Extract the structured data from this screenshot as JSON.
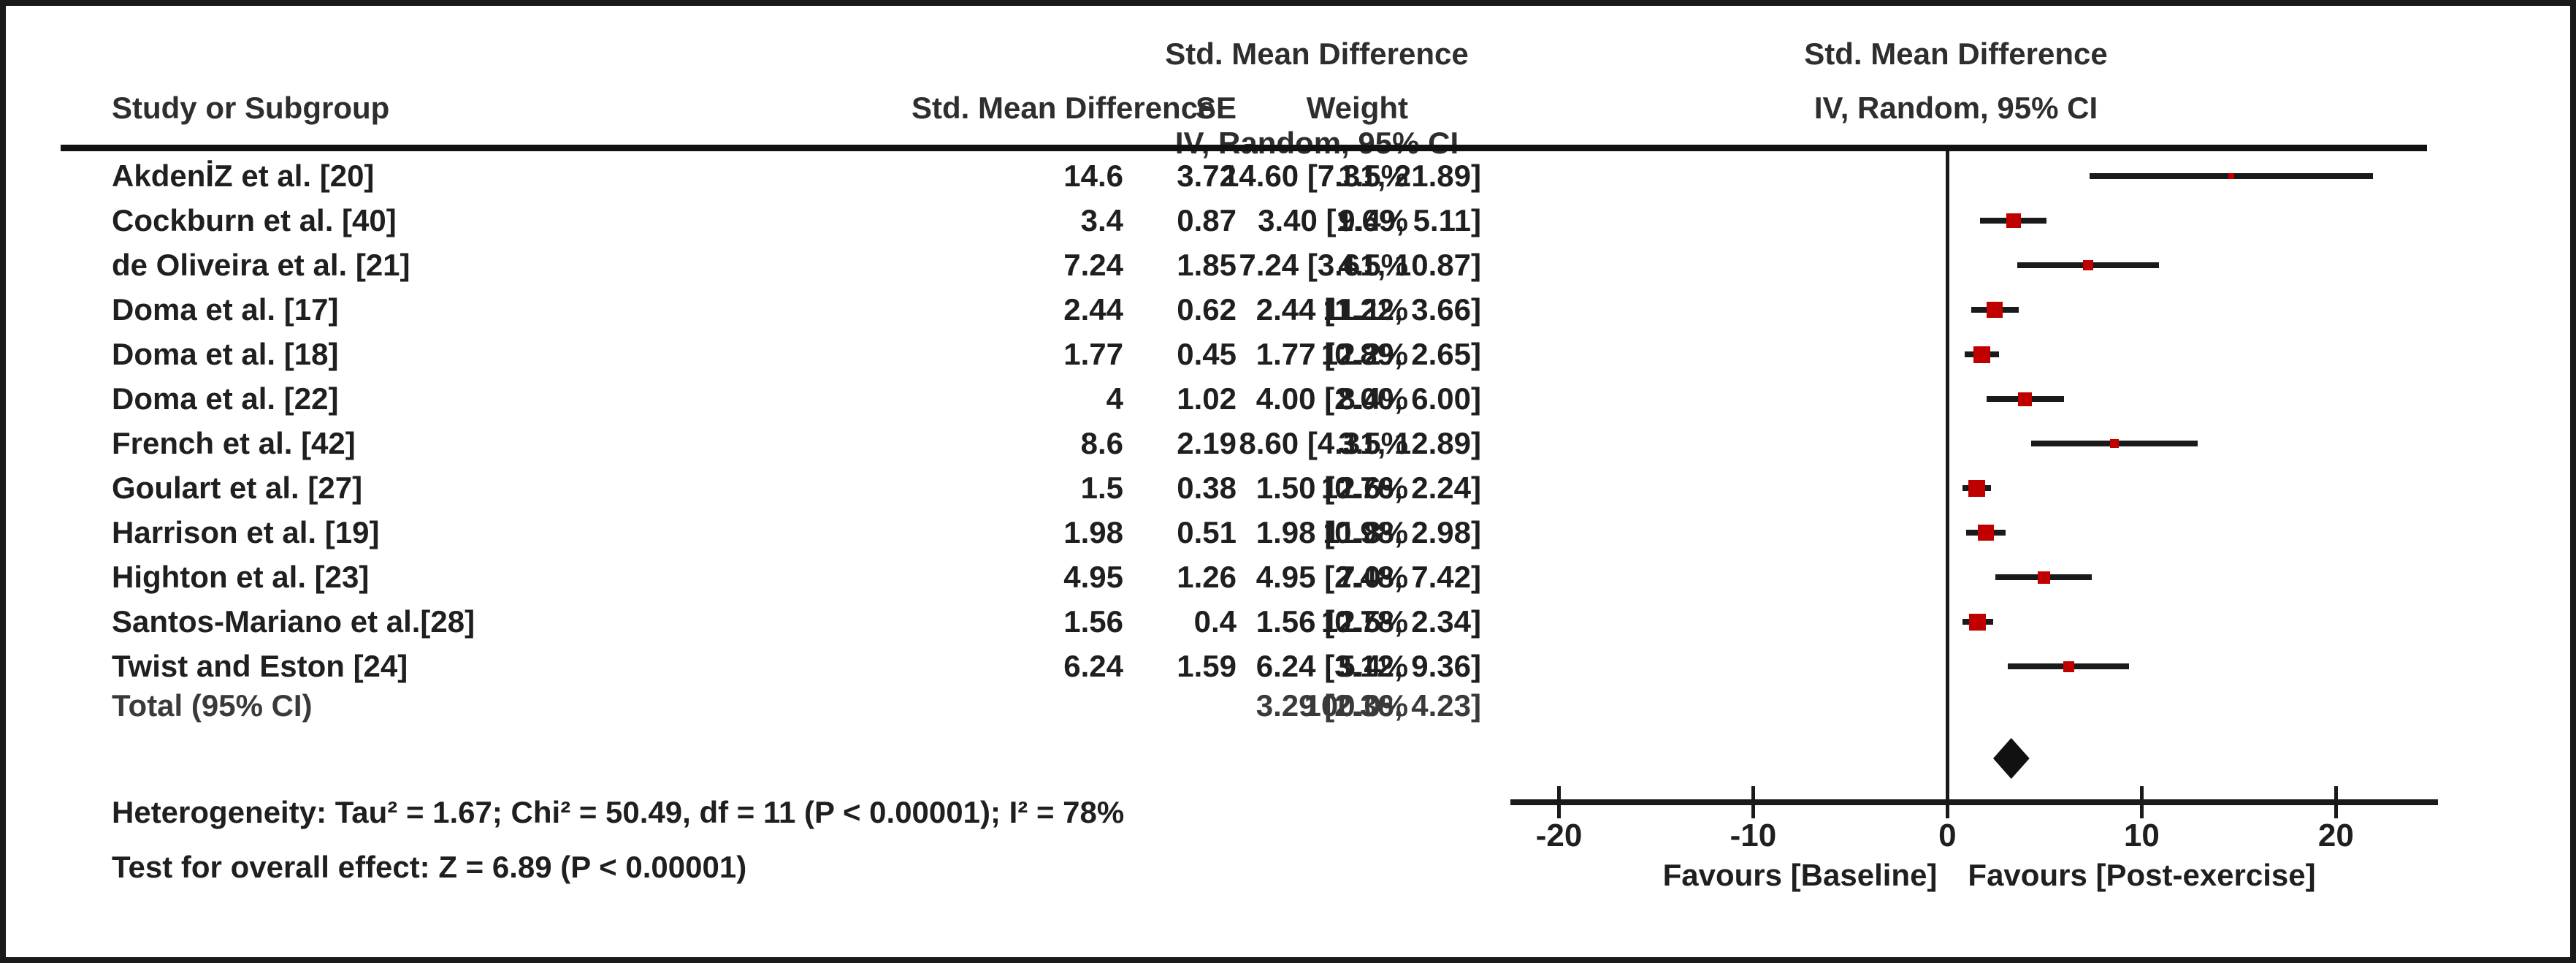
{
  "colors": {
    "marker_red": "#c00000",
    "line_black": "#1a1a1a",
    "diamond_black": "#111111"
  },
  "header": {
    "col_study": "Study or Subgroup",
    "col_smd": "Std. Mean Difference",
    "col_se": "SE",
    "col_weight": "Weight",
    "col_ci_line1": "Std. Mean Difference",
    "col_ci_line2": "IV, Random, 95% CI",
    "plot_line1": "Std. Mean Difference",
    "plot_line2": "IV, Random, 95% CI"
  },
  "chart_data": {
    "type": "forest",
    "effect_measure": "Std. Mean Difference, IV, Random, 95% CI",
    "x_axis": {
      "ticks": [
        -20,
        -10,
        0,
        10,
        20
      ],
      "range": [
        -22.5,
        25.25
      ],
      "label_left": "Favours [Baseline]",
      "label_right": "Favours [Post-exercise]"
    },
    "studies": [
      {
        "name": "AkdenİZ et al. [20]",
        "smd": "14.6",
        "se": "3.72",
        "weight": "1.5%",
        "ci_text": "14.60 [7.31, 21.89]",
        "est": 14.6,
        "lo": 7.31,
        "hi": 21.89,
        "weight_value": 1.5
      },
      {
        "name": "Cockburn et al. [40]",
        "smd": "3.4",
        "se": "0.87",
        "weight": "9.4%",
        "ci_text": "3.40 [1.69, 5.11]",
        "est": 3.4,
        "lo": 1.69,
        "hi": 5.11,
        "weight_value": 9.4
      },
      {
        "name": "de Oliveira et al. [21]",
        "smd": "7.24",
        "se": "1.85",
        "weight": "4.5%",
        "ci_text": "7.24 [3.61, 10.87]",
        "est": 7.24,
        "lo": 3.61,
        "hi": 10.87,
        "weight_value": 4.5
      },
      {
        "name": "Doma et al. [17]",
        "smd": "2.44",
        "se": "0.62",
        "weight": "11.1%",
        "ci_text": "2.44 [1.22, 3.66]",
        "est": 2.44,
        "lo": 1.22,
        "hi": 3.66,
        "weight_value": 11.1
      },
      {
        "name": "Doma et al. [18]",
        "smd": "1.77",
        "se": "0.45",
        "weight": "12.2%",
        "ci_text": "1.77 [0.89, 2.65]",
        "est": 1.77,
        "lo": 0.89,
        "hi": 2.65,
        "weight_value": 12.2
      },
      {
        "name": "Doma et al. [22]",
        "smd": "4",
        "se": "1.02",
        "weight": "8.4%",
        "ci_text": "4.00 [2.00, 6.00]",
        "est": 4.0,
        "lo": 2.0,
        "hi": 6.0,
        "weight_value": 8.4
      },
      {
        "name": "French et al. [42]",
        "smd": "8.6",
        "se": "2.19",
        "weight": "3.5%",
        "ci_text": "8.60 [4.31, 12.89]",
        "est": 8.6,
        "lo": 4.31,
        "hi": 12.89,
        "weight_value": 3.5
      },
      {
        "name": "Goulart et al. [27]",
        "smd": "1.5",
        "se": "0.38",
        "weight": "12.6%",
        "ci_text": "1.50 [0.76, 2.24]",
        "est": 1.5,
        "lo": 0.76,
        "hi": 2.24,
        "weight_value": 12.6
      },
      {
        "name": "Harrison et al. [19]",
        "smd": "1.98",
        "se": "0.51",
        "weight": "11.8%",
        "ci_text": "1.98 [0.98, 2.98]",
        "est": 1.98,
        "lo": 0.98,
        "hi": 2.98,
        "weight_value": 11.8
      },
      {
        "name": "Highton et al. [23]",
        "smd": "4.95",
        "se": "1.26",
        "weight": "7.0%",
        "ci_text": "4.95 [2.48, 7.42]",
        "est": 4.95,
        "lo": 2.48,
        "hi": 7.42,
        "weight_value": 7.0
      },
      {
        "name": "Santos-Mariano et al.[28]",
        "smd": "1.56",
        "se": "0.4",
        "weight": "12.5%",
        "ci_text": "1.56 [0.78, 2.34]",
        "est": 1.56,
        "lo": 0.78,
        "hi": 2.34,
        "weight_value": 12.5
      },
      {
        "name": "Twist and Eston [24]",
        "smd": "6.24",
        "se": "1.59",
        "weight": "5.4%",
        "ci_text": "6.24 [3.12, 9.36]",
        "est": 6.24,
        "lo": 3.12,
        "hi": 9.36,
        "weight_value": 5.4
      }
    ],
    "total": {
      "label": "Total (95% CI)",
      "weight": "100.0%",
      "ci_text": "3.29 [2.36, 4.23]",
      "est": 3.29,
      "lo": 2.36,
      "hi": 4.23
    },
    "heterogeneity": "Heterogeneity: Tau² = 1.67; Chi² = 50.49, df = 11 (P < 0.00001); I² = 78%",
    "overall_effect": "Test for overall effect: Z = 6.89 (P < 0.00001)"
  }
}
